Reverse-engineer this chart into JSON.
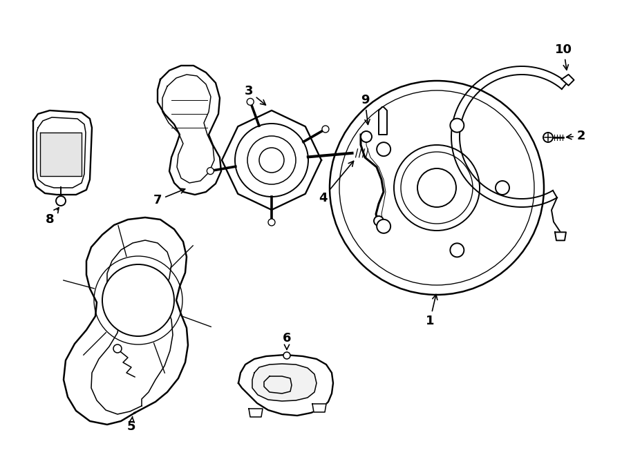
{
  "background_color": "#ffffff",
  "line_color": "#000000",
  "lw": 1.4,
  "fontsize": 13
}
